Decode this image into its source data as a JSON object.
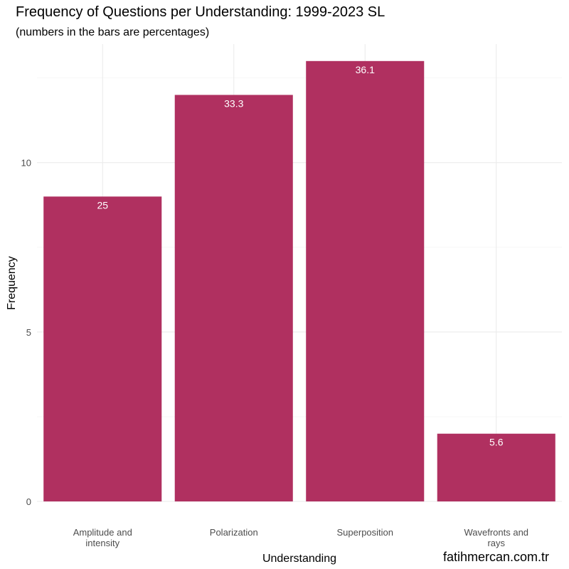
{
  "chart_data": {
    "type": "bar",
    "title": "Frequency of Questions per Understanding: 1999-2023 SL",
    "subtitle": "(numbers in the bars are percentages)",
    "xlabel": "Understanding",
    "ylabel": "Frequency",
    "categories": [
      [
        "Amplitude and",
        "intensity"
      ],
      [
        "Polarization"
      ],
      [
        "Superposition"
      ],
      [
        "Wavefronts and",
        "rays"
      ]
    ],
    "values": [
      9,
      12,
      13,
      2
    ],
    "bar_labels": [
      "25",
      "33.3",
      "36.1",
      "5.6"
    ],
    "ylim": [
      0,
      13.5
    ],
    "yticks": [
      0,
      5,
      10
    ],
    "ytick_labels": [
      "0",
      "5",
      "10"
    ],
    "grid": true,
    "bar_color": "#b03060"
  },
  "watermark": "fatihmercan.com.tr"
}
